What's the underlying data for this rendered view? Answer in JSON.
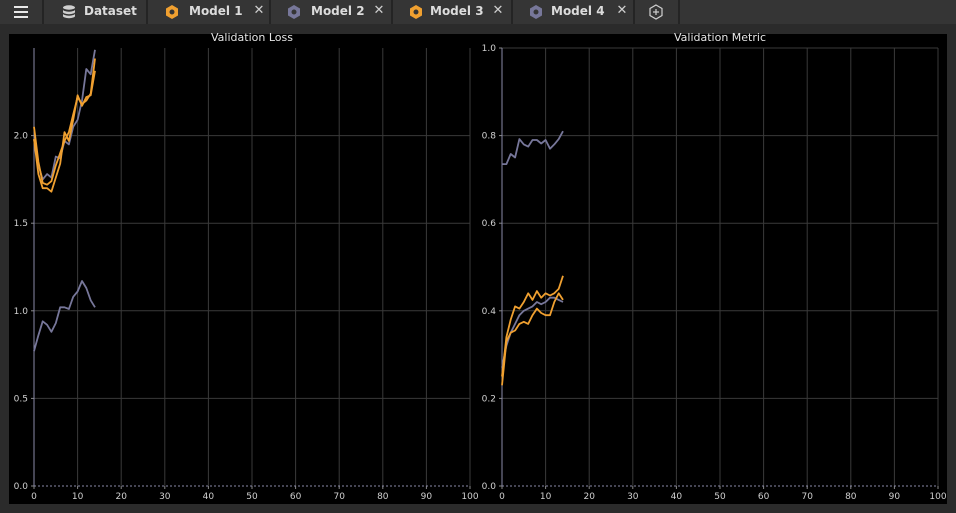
{
  "tabs": [
    {
      "label": "Dataset",
      "icon": "database-icon"
    },
    {
      "label": "Model 1",
      "icon": "hexagon-icon",
      "color": "#f0a030"
    },
    {
      "label": "Model 2",
      "icon": "hexagon-icon",
      "color": "#77779a"
    },
    {
      "label": "Model 3",
      "icon": "hexagon-icon",
      "color": "#f0a030"
    },
    {
      "label": "Model 4",
      "icon": "hexagon-icon",
      "color": "#77779a"
    }
  ],
  "close_glyph": "✕",
  "colors": {
    "orange": "#f0a030",
    "purple": "#77779a"
  },
  "chart_data": [
    {
      "type": "line",
      "title": "Validation Loss",
      "xlim": [
        0,
        100
      ],
      "ylim": [
        0,
        2.5
      ],
      "xticks": [
        "0",
        "10",
        "20",
        "30",
        "40",
        "50",
        "60",
        "70",
        "80",
        "90",
        "100"
      ],
      "yticks": [
        "0.0",
        "0.5",
        "1.0",
        "1.5",
        "2.0"
      ],
      "grid": true,
      "series": [
        {
          "color": "#77779a",
          "x": [
            0,
            1,
            2,
            3,
            4,
            5,
            6,
            7,
            8,
            9,
            10,
            11,
            12,
            13,
            14
          ],
          "y": [
            0.77,
            0.86,
            0.94,
            0.92,
            0.88,
            0.93,
            1.02,
            1.02,
            1.01,
            1.08,
            1.11,
            1.17,
            1.13,
            1.06,
            1.02
          ]
        },
        {
          "color": "#77779a",
          "x": [
            0,
            1,
            2,
            3,
            4,
            5,
            6,
            7,
            8,
            9,
            10,
            11,
            12,
            13,
            14
          ],
          "y": [
            1.98,
            1.83,
            1.75,
            1.78,
            1.76,
            1.88,
            1.87,
            1.97,
            1.95,
            2.05,
            2.09,
            2.2,
            2.38,
            2.35,
            2.49
          ]
        },
        {
          "color": "#f0a030",
          "x": [
            0,
            1,
            2,
            3,
            4,
            5,
            6,
            7,
            8,
            9,
            10,
            11,
            12,
            13,
            14
          ],
          "y": [
            2.05,
            1.85,
            1.73,
            1.72,
            1.74,
            1.83,
            1.9,
            1.97,
            2.02,
            2.12,
            2.22,
            2.18,
            2.2,
            2.24,
            2.44
          ]
        },
        {
          "color": "#f0a030",
          "x": [
            0,
            1,
            2,
            3,
            4,
            5,
            6,
            7,
            8,
            9,
            10,
            11,
            12,
            13,
            14
          ],
          "y": [
            1.98,
            1.78,
            1.7,
            1.7,
            1.68,
            1.76,
            1.84,
            2.02,
            1.97,
            2.09,
            2.23,
            2.17,
            2.22,
            2.23,
            2.37
          ]
        }
      ]
    },
    {
      "type": "line",
      "title": "Validation Metric",
      "xlim": [
        0,
        100
      ],
      "ylim": [
        0,
        1.0
      ],
      "xticks": [
        "0",
        "10",
        "20",
        "30",
        "40",
        "50",
        "60",
        "70",
        "80",
        "90",
        "100"
      ],
      "yticks": [
        "0.0",
        "0.2",
        "0.4",
        "0.6",
        "0.8",
        "1.0"
      ],
      "grid": true,
      "series": [
        {
          "color": "#77779a",
          "x": [
            0,
            1,
            2,
            3,
            4,
            5,
            6,
            7,
            8,
            9,
            10,
            11,
            12,
            13,
            14
          ],
          "y": [
            0.735,
            0.735,
            0.758,
            0.75,
            0.792,
            0.78,
            0.775,
            0.79,
            0.79,
            0.782,
            0.79,
            0.77,
            0.78,
            0.792,
            0.81
          ]
        },
        {
          "color": "#77779a",
          "x": [
            0,
            1,
            2,
            3,
            4,
            5,
            6,
            7,
            8,
            9,
            10,
            11,
            12,
            13,
            14
          ],
          "y": [
            0.27,
            0.32,
            0.35,
            0.37,
            0.39,
            0.4,
            0.405,
            0.41,
            0.42,
            0.415,
            0.42,
            0.43,
            0.43,
            0.425,
            0.42
          ]
        },
        {
          "color": "#f0a030",
          "x": [
            0,
            1,
            2,
            3,
            4,
            5,
            6,
            7,
            8,
            9,
            10,
            11,
            12,
            13,
            14
          ],
          "y": [
            0.25,
            0.34,
            0.38,
            0.41,
            0.405,
            0.42,
            0.44,
            0.425,
            0.445,
            0.43,
            0.44,
            0.435,
            0.44,
            0.45,
            0.48
          ]
        },
        {
          "color": "#f0a030",
          "x": [
            0,
            1,
            2,
            3,
            4,
            5,
            6,
            7,
            8,
            9,
            10,
            11,
            12,
            13,
            14
          ],
          "y": [
            0.23,
            0.33,
            0.35,
            0.355,
            0.37,
            0.375,
            0.37,
            0.39,
            0.405,
            0.395,
            0.39,
            0.39,
            0.42,
            0.44,
            0.425
          ]
        }
      ]
    }
  ]
}
